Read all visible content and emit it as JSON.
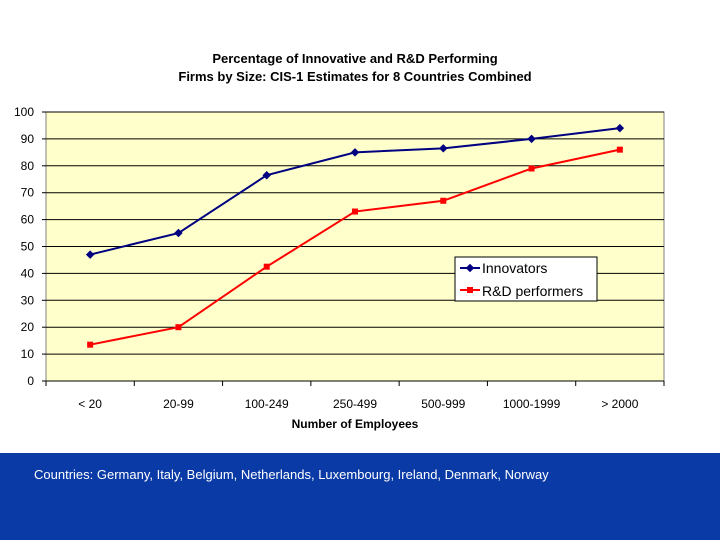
{
  "chart_data": {
    "type": "line",
    "title_lines": [
      "Percentage of Innovative and R&D Performing",
      "Firms by Size: CIS-1 Estimates for 8 Countries Combined"
    ],
    "categories": [
      "< 20",
      "20-99",
      "100-249",
      "250-499",
      "500-999",
      "1000-1999",
      "> 2000"
    ],
    "series": [
      {
        "name": "Innovators",
        "values": [
          47,
          55,
          76.5,
          85,
          86.5,
          90,
          94
        ],
        "color": "#000080",
        "marker": "diamond"
      },
      {
        "name": "R&D performers",
        "values": [
          13.5,
          20,
          42.5,
          63,
          67,
          79,
          86
        ],
        "color": "#ff0000",
        "marker": "square"
      }
    ],
    "xlabel": "Number of Employees",
    "ylabel": "",
    "ylim": [
      0,
      100
    ],
    "yticks": [
      0,
      10,
      20,
      30,
      40,
      50,
      60,
      70,
      80,
      90,
      100
    ],
    "grid": true,
    "legend_position": "right",
    "plot_background": "#ffffcc"
  },
  "footer": {
    "text": "Countries: Germany, Italy, Belgium, Netherlands, Luxembourg, Ireland, Denmark, Norway",
    "background": "#0a3aa6"
  }
}
